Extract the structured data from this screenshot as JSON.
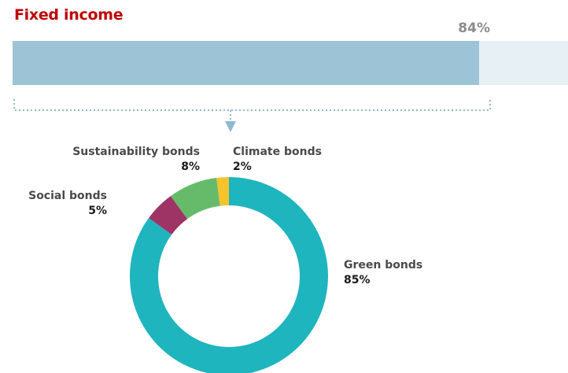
{
  "title": "Fixed income",
  "bar": {
    "label": "84%",
    "value": 84,
    "fill_color": "#9dc3d6",
    "track_color": "#e6f0f5"
  },
  "chart_data": {
    "type": "pie",
    "variant": "donut",
    "title": "",
    "slices": [
      {
        "name": "Green bonds",
        "label": "85%",
        "value": 85,
        "color": "#1fb5be"
      },
      {
        "name": "Social bonds",
        "label": "5%",
        "value": 5,
        "color": "#9e3366"
      },
      {
        "name": "Sustainability bonds",
        "label": "8%",
        "value": 8,
        "color": "#66bb6a"
      },
      {
        "name": "Climate bonds",
        "label": "2%",
        "value": 2,
        "color": "#f5c32c"
      }
    ]
  }
}
